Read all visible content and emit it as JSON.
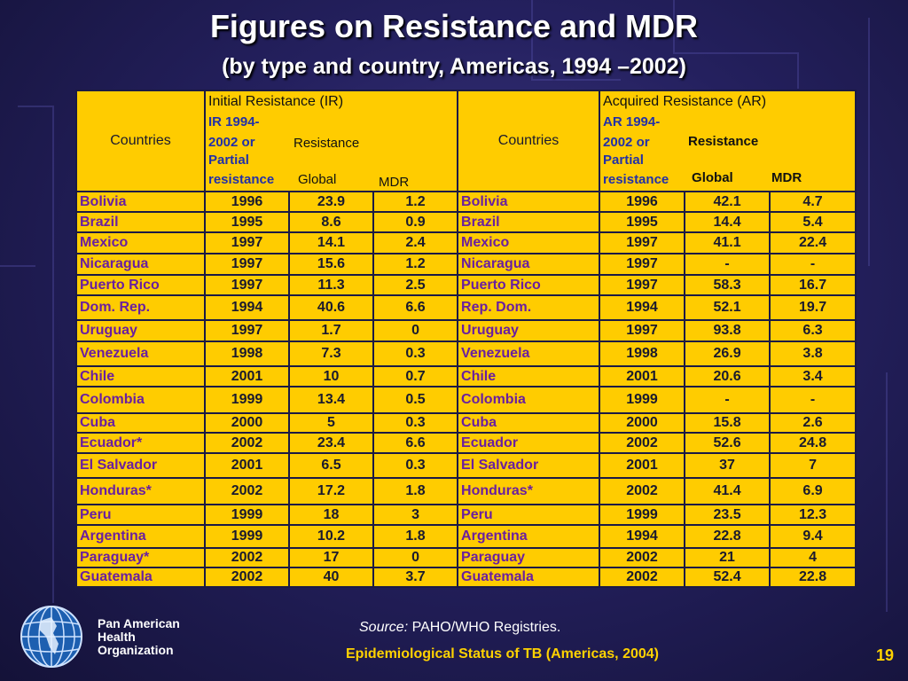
{
  "title": "Figures on Resistance and MDR",
  "subtitle": "(by type and country, Americas, 1994 –2002)",
  "header": {
    "countries_label": "Countries",
    "initial_title": "Initial Resistance (IR)",
    "initial_years_a": "IR 1994-",
    "initial_years_b": "2002 or",
    "initial_years_c": "Partial",
    "initial_years_d": "resistance",
    "resistance_label": "Resistance",
    "global_label": "Global",
    "mdr_label": "MDR",
    "acquired_title": "Acquired Resistance (AR)",
    "acquired_years_a": "AR 1994-",
    "acquired_years_b": "2002 or",
    "acquired_years_c": "Partial",
    "acquired_years_d": "resistance"
  },
  "rows": [
    {
      "ic": "Bolivia",
      "iy": "1996",
      "ig": "23.9",
      "im": "1.2",
      "ac": "Bolivia",
      "ay": "1996",
      "ag": "42.1",
      "am": "4.7"
    },
    {
      "ic": "Brazil",
      "iy": "1995",
      "ig": "8.6",
      "im": "0.9",
      "ac": "Brazil",
      "ay": "1995",
      "ag": "14.4",
      "am": "5.4"
    },
    {
      "ic": "Mexico",
      "iy": "1997",
      "ig": "14.1",
      "im": "2.4",
      "ac": "Mexico",
      "ay": "1997",
      "ag": "41.1",
      "am": "22.4"
    },
    {
      "ic": "Nicaragua",
      "iy": "1997",
      "ig": "15.6",
      "im": "1.2",
      "ac": "Nicaragua",
      "ay": "1997",
      "ag": "-",
      "am": "-"
    },
    {
      "ic": "Puerto Rico",
      "iy": "1997",
      "ig": "11.3",
      "im": "2.5",
      "ac": "Puerto Rico",
      "ay": "1997",
      "ag": "58.3",
      "am": "16.7"
    },
    {
      "ic": " Dom. Rep.",
      "iy": "1994",
      "ig": "40.6",
      "im": "6.6",
      "ac": "Rep. Dom.",
      "ay": "1994",
      "ag": "52.1",
      "am": "19.7"
    },
    {
      "ic": "Uruguay",
      "iy": "1997",
      "ig": "1.7",
      "im": "0",
      "ac": "Uruguay",
      "ay": "1997",
      "ag": "93.8",
      "am": "6.3"
    },
    {
      "ic": "Venezuela",
      "iy": "1998",
      "ig": "7.3",
      "im": "0.3",
      "ac": "Venezuela",
      "ay": "1998",
      "ag": "26.9",
      "am": "3.8"
    },
    {
      "ic": "Chile",
      "iy": "2001",
      "ig": "10",
      "im": "0.7",
      "ac": "Chile",
      "ay": "2001",
      "ag": "20.6",
      "am": "3.4"
    },
    {
      "ic": "Colombia",
      "iy": "1999",
      "ig": "13.4",
      "im": "0.5",
      "ac": "Colombia",
      "ay": "1999",
      "ag": "-",
      "am": "-"
    },
    {
      "ic": "Cuba",
      "iy": "2000",
      "ig": "5",
      "im": "0.3",
      "ac": "Cuba",
      "ay": "2000",
      "ag": "15.8",
      "am": "2.6"
    },
    {
      "ic": "Ecuador*",
      "iy": "2002",
      "ig": "23.4",
      "im": "6.6",
      "ac": "Ecuador",
      "ay": "2002",
      "ag": "52.6",
      "am": "24.8"
    },
    {
      "ic": "El Salvador",
      "iy": "2001",
      "ig": "6.5",
      "im": "0.3",
      "ac": "El Salvador",
      "ay": "2001",
      "ag": "37",
      "am": "7"
    },
    {
      "ic": "Honduras*",
      "iy": "2002",
      "ig": "17.2",
      "im": "1.8",
      "ac": "Honduras*",
      "ay": "2002",
      "ag": "41.4",
      "am": "6.9"
    },
    {
      "ic": "Peru",
      "iy": "1999",
      "ig": "18",
      "im": "3",
      "ac": "Peru",
      "ay": "1999",
      "ag": "23.5",
      "am": "12.3"
    },
    {
      "ic": "Argentina",
      "iy": "1999",
      "ig": "10.2",
      "im": "1.8",
      "ac": "Argentina",
      "ay": "1994",
      "ag": "22.8",
      "am": "9.4"
    },
    {
      "ic": "Paraguay*",
      "iy": "2002",
      "ig": "17",
      "im": "0",
      "ac": "Paraguay",
      "ay": "2002",
      "ag": "21",
      "am": "4"
    },
    {
      "ic": "Guatemala",
      "iy": "2002",
      "ig": "40",
      "im": "3.7",
      "ac": "Guatemala",
      "ay": "2002",
      "ag": "52.4",
      "am": "22.8"
    }
  ],
  "footer": {
    "org_line1": "Pan American",
    "org_line2": "Health",
    "org_line3": "Organization",
    "source_label": "Source:",
    "source_text": " PAHO/WHO Registries.",
    "publication": "Epidemiological Status of TB (Americas, 2004)",
    "page_number": "19"
  },
  "colors": {
    "table_bg": "#ffcc00",
    "country_text": "#6a1fa0",
    "header_blue": "#2230a8",
    "footer_yellow": "#ffd200"
  }
}
